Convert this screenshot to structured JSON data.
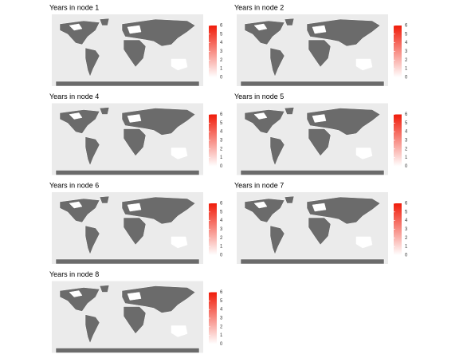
{
  "panels": [
    {
      "title": "Years in node 1"
    },
    {
      "title": "Years in node 2"
    },
    {
      "title": "Years in node 4"
    },
    {
      "title": "Years in node 5"
    },
    {
      "title": "Years in node 6"
    },
    {
      "title": "Years in node 7"
    },
    {
      "title": "Years in node 8"
    }
  ],
  "legend": {
    "ticks": [
      0,
      1,
      2,
      3,
      4,
      5,
      6
    ],
    "low_color": "#ffffff",
    "high_color": "#f01c0a"
  }
}
